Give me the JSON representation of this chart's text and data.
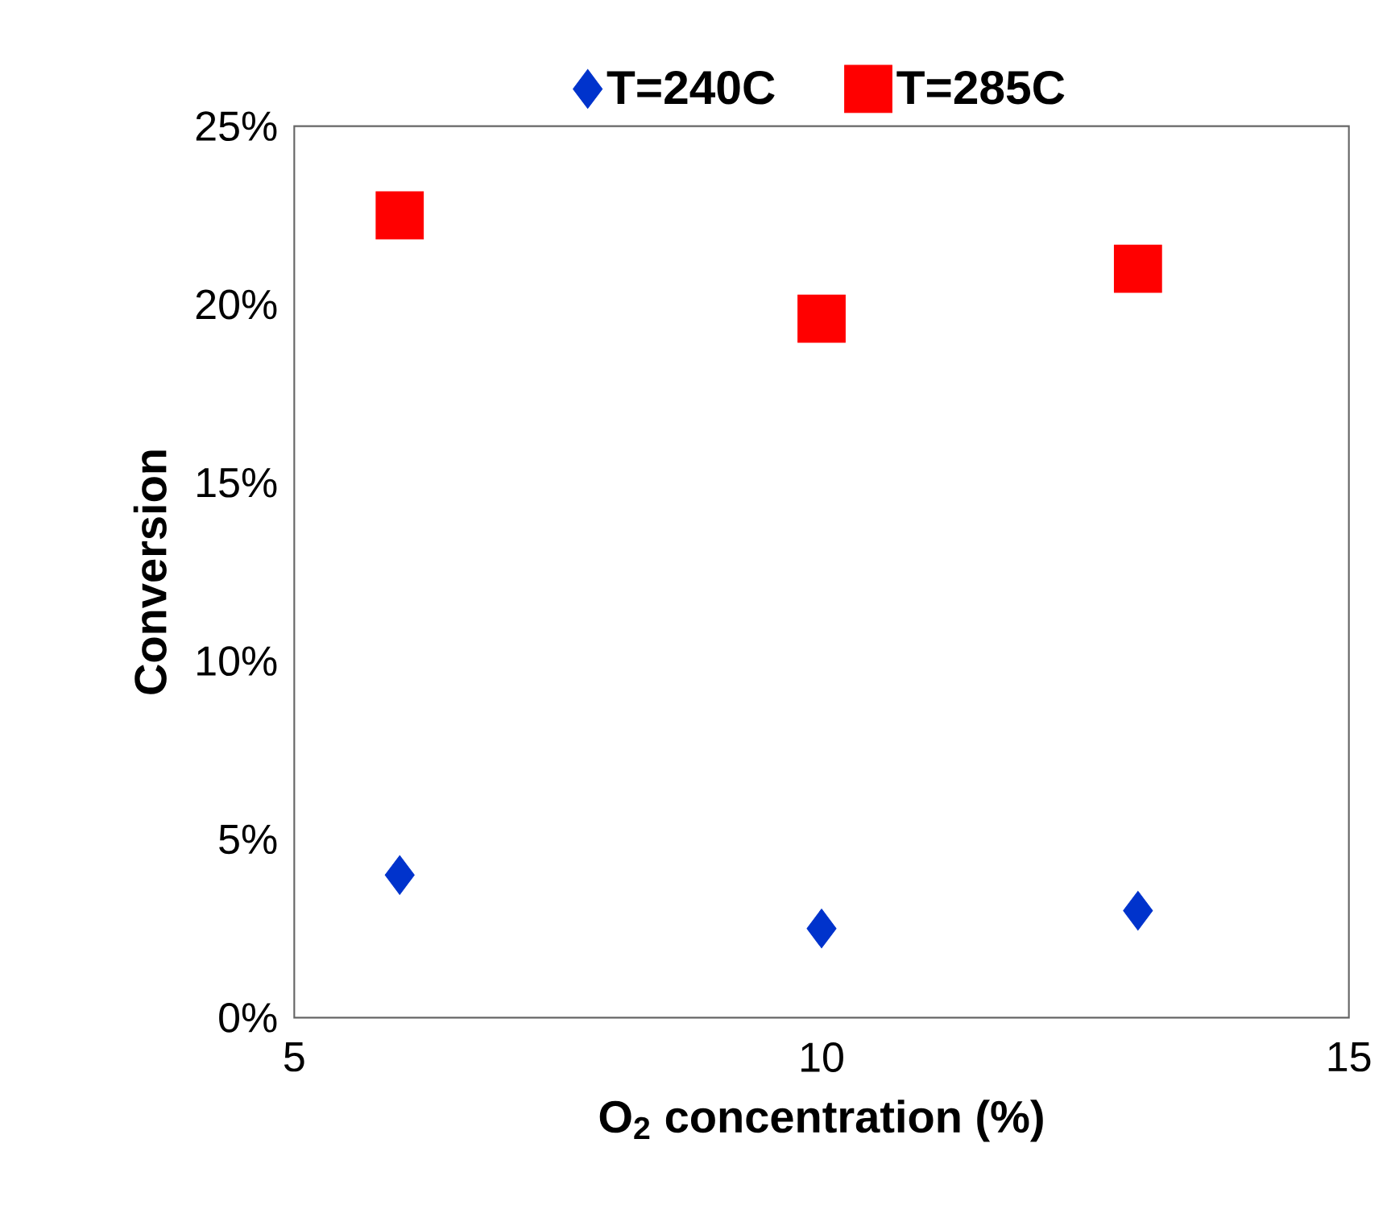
{
  "chart_data": {
    "type": "scatter",
    "xlabel": "O$_{2}$ concentration (%)",
    "ylabel": "Conversion",
    "xlim": [
      5,
      15
    ],
    "xticks": [
      5,
      10,
      15
    ],
    "ylim": [
      0,
      25
    ],
    "yticks": [
      {
        "value": 0,
        "label": "0%"
      },
      {
        "value": 5,
        "label": "5%"
      },
      {
        "value": 10,
        "label": "10%"
      },
      {
        "value": 15,
        "label": "15%"
      },
      {
        "value": 20,
        "label": "20%"
      },
      {
        "value": 25,
        "label": "25%"
      }
    ],
    "x": [
      6,
      10,
      13
    ],
    "legend": "top",
    "series": [
      {
        "name": "T=240C",
        "color": "#0033cc",
        "marker": "diamond",
        "values": [
          4,
          2.5,
          3
        ]
      },
      {
        "name": "T=285C",
        "color": "#ff0000",
        "marker": "square",
        "values": [
          22.5,
          19.6,
          21
        ]
      }
    ]
  }
}
